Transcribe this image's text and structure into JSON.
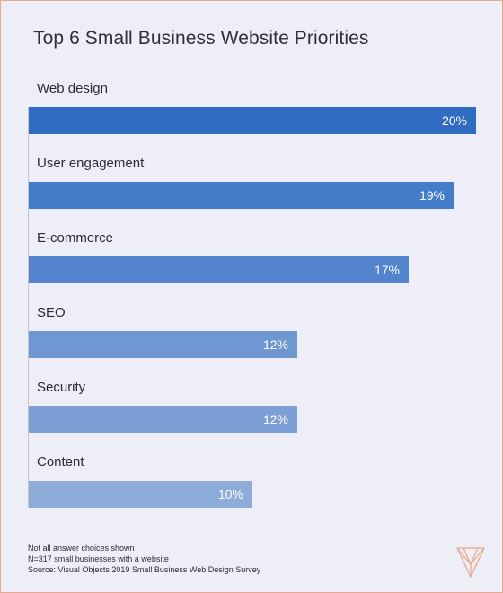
{
  "chart_data": {
    "type": "bar",
    "orientation": "horizontal",
    "title": "Top 6 Small Business Website Priorities",
    "categories": [
      "Web design",
      "User engagement",
      "E-commerce",
      "SEO",
      "Security",
      "Content"
    ],
    "values": [
      20,
      19,
      17,
      12,
      12,
      10
    ],
    "value_labels": [
      "20%",
      "19%",
      "17%",
      "12%",
      "12%",
      "10%"
    ],
    "unit": "%",
    "xlim": [
      0,
      20
    ],
    "grid": false,
    "bar_colors": [
      "#2f6cc2",
      "#437cc8",
      "#5283cc",
      "#6f97d2",
      "#7d9fd5",
      "#8eacda"
    ]
  },
  "notes": [
    "Not all answer choices shown",
    "N=317 small businesses with a website",
    "Source: Visual Objects 2019 Small Business Web Design Survey"
  ],
  "logo": {
    "icon": "visual-objects-logo-icon",
    "color": "#e8a98c"
  }
}
